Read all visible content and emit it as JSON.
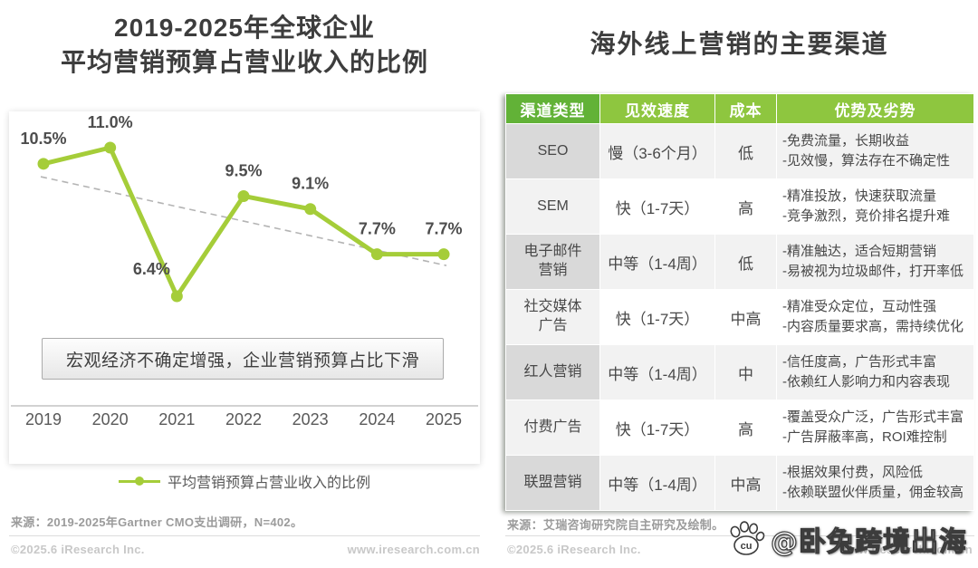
{
  "colors": {
    "accent": "#a5cd39",
    "header_green_dark": "#62b237",
    "header_green_light": "#8ec63f",
    "first_col_gray": "#d9d9d9",
    "row_light_gray": "#f2f2f2",
    "trendline_gray": "#b4b4b4"
  },
  "chart_data": {
    "type": "line",
    "title": "2019-2025年全球企业平均营销预算占营业收入的比例",
    "categories": [
      "2019",
      "2020",
      "2021",
      "2022",
      "2023",
      "2024",
      "2025"
    ],
    "values": [
      10.5,
      11.0,
      6.4,
      9.5,
      9.1,
      7.7,
      7.7
    ],
    "point_labels": [
      "10.5%",
      "11.0%",
      "6.4%",
      "9.5%",
      "9.1%",
      "7.7%",
      "7.7%"
    ],
    "series_name": "平均营销预算占营业收入的比例",
    "trendline": {
      "style": "dashed",
      "start_value": 10.1,
      "end_value": 7.35
    },
    "annotation": "宏观经济不确定增强，企业营销预算占比下滑",
    "ylim": [
      5.5,
      12
    ],
    "grid": false,
    "legend_position": "bottom"
  },
  "left": {
    "title_line1": "2019-2025年全球企业",
    "title_line2": "平均营销预算占营业收入的比例",
    "callout": "宏观经济不确定增强，企业营销预算占比下滑",
    "legend_label": "平均营销预算占营业收入的比例",
    "source": "来源：2019-2025年Gartner CMO支出调研，N=402。",
    "footer_left": "©2025.6 iResearch Inc.",
    "footer_right": "www.iresearch.com.cn"
  },
  "right": {
    "title": "海外线上营销的主要渠道",
    "table": {
      "headers": [
        "渠道类型",
        "见效速度",
        "成本",
        "优势及劣势"
      ],
      "rows": [
        {
          "channel": "SEO",
          "speed": "慢（3-6个月）",
          "cost": "低",
          "pros_cons": [
            "-免费流量，长期收益",
            "-见效慢，算法存在不确定性"
          ]
        },
        {
          "channel": "SEM",
          "speed": "快（1-7天）",
          "cost": "高",
          "pros_cons": [
            "-精准投放，快速获取流量",
            "-竞争激烈，竞价排名提升难"
          ]
        },
        {
          "channel": "电子邮件 营销",
          "speed": "中等（1-4周）",
          "cost": "低",
          "pros_cons": [
            "-精准触达，适合短期营销",
            "-易被视为垃圾邮件，打开率低"
          ]
        },
        {
          "channel": "社交媒体 广告",
          "speed": "快（1-7天）",
          "cost": "中高",
          "pros_cons": [
            "-精准受众定位，互动性强",
            "-内容质量要求高，需持续优化"
          ]
        },
        {
          "channel": "红人营销",
          "speed": "中等（1-4周）",
          "cost": "中",
          "pros_cons": [
            "-信任度高，广告形式丰富",
            "-依赖红人影响力和内容表现"
          ]
        },
        {
          "channel": "付费广告",
          "speed": "快（1-7天）",
          "cost": "高",
          "pros_cons": [
            "-覆盖受众广泛，广告形式丰富",
            "-广告屏蔽率高，ROI难控制"
          ]
        },
        {
          "channel": "联盟营销",
          "speed": "中等（1-4周）",
          "cost": "中高",
          "pros_cons": [
            "-根据效果付费，风险低",
            "-依赖联盟伙伴质量，佣金较高"
          ]
        }
      ]
    },
    "source": "来源：艾瑞咨询研究院自主研究及绘制。",
    "footer_left": "©2025.6 iResearch Inc.",
    "footer_right": "www.iresearch.com.cn"
  },
  "watermark": {
    "icon": "paw-icon",
    "icon_letters": "cu",
    "text": "@卧兔跨境出海"
  }
}
